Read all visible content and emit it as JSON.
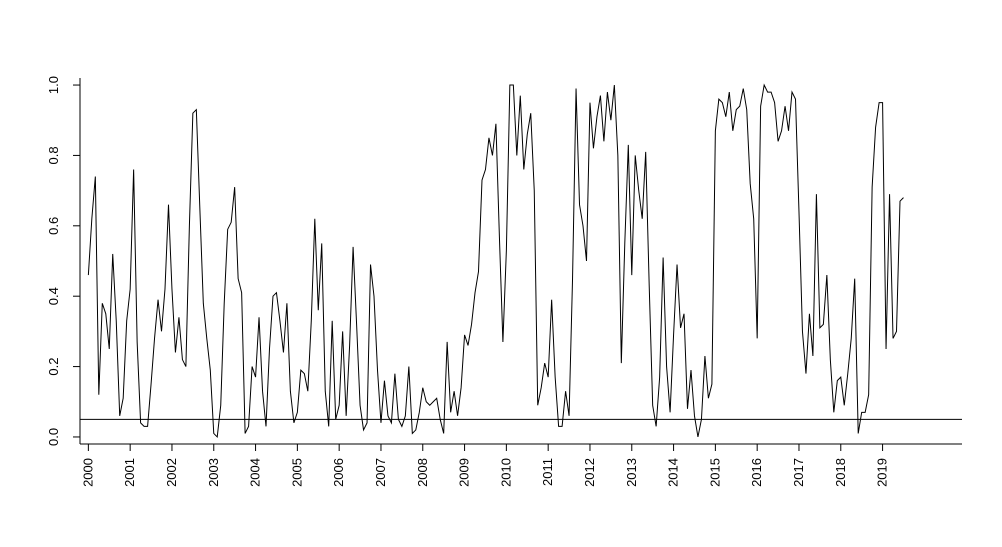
{
  "chart_data": {
    "type": "line",
    "title": "",
    "xlabel": "",
    "ylabel": "",
    "xlim": [
      1999.8,
      2020.9
    ],
    "ylim": [
      -0.02,
      1.02
    ],
    "y_ticks": [
      "0.0",
      "0.2",
      "0.4",
      "0.6",
      "0.8",
      "1.0"
    ],
    "x_tick_labels": [
      "2000",
      "2001",
      "2002",
      "2003",
      "2004",
      "2005",
      "2006",
      "2007",
      "2008",
      "2009",
      "2010",
      "2011",
      "2012",
      "2013",
      "2014",
      "2015",
      "2016",
      "2017",
      "2018",
      "2019"
    ],
    "hline": 0.05,
    "colors": {
      "line": "#000000",
      "axes": "#000000",
      "background": "#ffffff"
    },
    "series": [
      {
        "x": [
          2000.0,
          2000.083,
          2000.167,
          2000.25,
          2000.333,
          2000.417,
          2000.5,
          2000.583,
          2000.667,
          2000.75,
          2000.833,
          2000.917,
          2001.0,
          2001.083,
          2001.167,
          2001.25,
          2001.333,
          2001.417,
          2001.5,
          2001.583,
          2001.667,
          2001.75,
          2001.833,
          2001.917,
          2002.0,
          2002.083,
          2002.167,
          2002.25,
          2002.333,
          2002.417,
          2002.5,
          2002.583,
          2002.667,
          2002.75,
          2002.833,
          2002.917,
          2003.0,
          2003.083,
          2003.167,
          2003.25,
          2003.333,
          2003.417,
          2003.5,
          2003.583,
          2003.667,
          2003.75,
          2003.833,
          2003.917,
          2004.0,
          2004.083,
          2004.167,
          2004.25,
          2004.333,
          2004.417,
          2004.5,
          2004.583,
          2004.667,
          2004.75,
          2004.833,
          2004.917,
          2005.0,
          2005.083,
          2005.167,
          2005.25,
          2005.333,
          2005.417,
          2005.5,
          2005.583,
          2005.667,
          2005.75,
          2005.833,
          2005.917,
          2006.0,
          2006.083,
          2006.167,
          2006.25,
          2006.333,
          2006.417,
          2006.5,
          2006.583,
          2006.667,
          2006.75,
          2006.833,
          2006.917,
          2007.0,
          2007.083,
          2007.167,
          2007.25,
          2007.333,
          2007.417,
          2007.5,
          2007.583,
          2007.667,
          2007.75,
          2007.833,
          2007.917,
          2008.0,
          2008.083,
          2008.167,
          2008.25,
          2008.333,
          2008.417,
          2008.5,
          2008.583,
          2008.667,
          2008.75,
          2008.833,
          2008.917,
          2009.0,
          2009.083,
          2009.167,
          2009.25,
          2009.333,
          2009.417,
          2009.5,
          2009.583,
          2009.667,
          2009.75,
          2009.833,
          2009.917,
          2010.0,
          2010.083,
          2010.167,
          2010.25,
          2010.333,
          2010.417,
          2010.5,
          2010.583,
          2010.667,
          2010.75,
          2010.833,
          2010.917,
          2011.0,
          2011.083,
          2011.167,
          2011.25,
          2011.333,
          2011.417,
          2011.5,
          2011.583,
          2011.667,
          2011.75,
          2011.833,
          2011.917,
          2012.0,
          2012.083,
          2012.167,
          2012.25,
          2012.333,
          2012.417,
          2012.5,
          2012.583,
          2012.667,
          2012.75,
          2012.833,
          2012.917,
          2013.0,
          2013.083,
          2013.167,
          2013.25,
          2013.333,
          2013.417,
          2013.5,
          2013.583,
          2013.667,
          2013.75,
          2013.833,
          2013.917,
          2014.0,
          2014.083,
          2014.167,
          2014.25,
          2014.333,
          2014.417,
          2014.5,
          2014.583,
          2014.667,
          2014.75,
          2014.833,
          2014.917,
          2015.0,
          2015.083,
          2015.167,
          2015.25,
          2015.333,
          2015.417,
          2015.5,
          2015.583,
          2015.667,
          2015.75,
          2015.833,
          2015.917,
          2016.0,
          2016.083,
          2016.167,
          2016.25,
          2016.333,
          2016.417,
          2016.5,
          2016.583,
          2016.667,
          2016.75,
          2016.833,
          2016.917,
          2017.0,
          2017.083,
          2017.167,
          2017.25,
          2017.333,
          2017.417,
          2017.5,
          2017.583,
          2017.667,
          2017.75,
          2017.833,
          2017.917,
          2018.0,
          2018.083,
          2018.167,
          2018.25,
          2018.333,
          2018.417,
          2018.5,
          2018.583,
          2018.667,
          2018.75,
          2018.833,
          2018.917,
          2019.0,
          2019.083,
          2019.167,
          2019.25,
          2019.333,
          2019.417,
          2019.5
        ],
        "y": [
          0.46,
          0.62,
          0.74,
          0.12,
          0.38,
          0.35,
          0.25,
          0.52,
          0.33,
          0.06,
          0.11,
          0.33,
          0.42,
          0.76,
          0.27,
          0.04,
          0.03,
          0.03,
          0.15,
          0.28,
          0.39,
          0.3,
          0.42,
          0.66,
          0.42,
          0.24,
          0.34,
          0.22,
          0.2,
          0.6,
          0.92,
          0.93,
          0.65,
          0.38,
          0.28,
          0.19,
          0.01,
          0.0,
          0.09,
          0.38,
          0.59,
          0.61,
          0.71,
          0.45,
          0.41,
          0.01,
          0.03,
          0.2,
          0.17,
          0.34,
          0.13,
          0.03,
          0.25,
          0.4,
          0.41,
          0.33,
          0.24,
          0.38,
          0.13,
          0.04,
          0.07,
          0.19,
          0.18,
          0.13,
          0.33,
          0.62,
          0.36,
          0.55,
          0.13,
          0.03,
          0.33,
          0.05,
          0.09,
          0.3,
          0.06,
          0.26,
          0.54,
          0.32,
          0.09,
          0.02,
          0.04,
          0.49,
          0.4,
          0.19,
          0.04,
          0.16,
          0.06,
          0.04,
          0.18,
          0.05,
          0.03,
          0.06,
          0.2,
          0.01,
          0.02,
          0.07,
          0.14,
          0.1,
          0.09,
          0.1,
          0.11,
          0.05,
          0.01,
          0.27,
          0.07,
          0.13,
          0.06,
          0.14,
          0.29,
          0.26,
          0.32,
          0.41,
          0.47,
          0.73,
          0.76,
          0.85,
          0.8,
          0.89,
          0.57,
          0.27,
          0.53,
          1.0,
          1.0,
          0.8,
          0.97,
          0.76,
          0.86,
          0.92,
          0.7,
          0.09,
          0.14,
          0.21,
          0.17,
          0.39,
          0.17,
          0.03,
          0.03,
          0.13,
          0.06,
          0.45,
          0.99,
          0.66,
          0.6,
          0.5,
          0.95,
          0.82,
          0.91,
          0.97,
          0.84,
          0.98,
          0.9,
          1.0,
          0.8,
          0.21,
          0.55,
          0.83,
          0.46,
          0.8,
          0.7,
          0.62,
          0.81,
          0.43,
          0.09,
          0.03,
          0.17,
          0.51,
          0.2,
          0.07,
          0.29,
          0.49,
          0.31,
          0.35,
          0.08,
          0.19,
          0.06,
          0.0,
          0.05,
          0.23,
          0.11,
          0.15,
          0.87,
          0.96,
          0.95,
          0.91,
          0.98,
          0.87,
          0.93,
          0.94,
          0.99,
          0.93,
          0.72,
          0.62,
          0.28,
          0.94,
          1.0,
          0.98,
          0.98,
          0.95,
          0.84,
          0.87,
          0.94,
          0.87,
          0.98,
          0.96,
          0.64,
          0.3,
          0.18,
          0.35,
          0.23,
          0.69,
          0.31,
          0.32,
          0.46,
          0.22,
          0.07,
          0.16,
          0.17,
          0.09,
          0.18,
          0.28,
          0.45,
          0.01,
          0.07,
          0.07,
          0.12,
          0.71,
          0.88,
          0.95,
          0.95,
          0.25,
          0.69,
          0.28,
          0.3,
          0.67,
          0.68
        ]
      }
    ]
  }
}
